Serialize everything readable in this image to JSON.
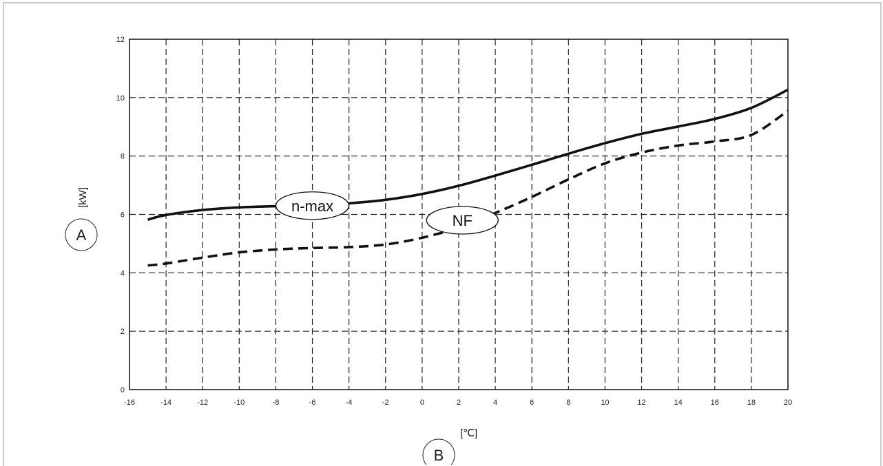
{
  "chart_data": {
    "type": "line",
    "title": "",
    "xlabel": "B",
    "ylabel": "A",
    "x_unit": "[℃]",
    "y_unit": "[kW]",
    "xlim": [
      -16,
      20
    ],
    "ylim": [
      0,
      12
    ],
    "xticks": [
      -16,
      -14,
      -12,
      -10,
      -8,
      -6,
      -4,
      -2,
      0,
      2,
      4,
      6,
      8,
      10,
      12,
      14,
      16,
      18,
      20
    ],
    "yticks": [
      0,
      2,
      4,
      6,
      8,
      10,
      12
    ],
    "grid": true,
    "series": [
      {
        "name": "n-max",
        "style": "solid",
        "x": [
          -15,
          -14,
          -12,
          -10,
          -8,
          -6,
          -4,
          -2,
          0,
          2,
          4,
          6,
          8,
          10,
          12,
          14,
          16,
          18,
          20
        ],
        "y": [
          5.82,
          5.98,
          6.15,
          6.24,
          6.28,
          6.3,
          6.38,
          6.5,
          6.7,
          6.98,
          7.33,
          7.7,
          8.08,
          8.44,
          8.76,
          9.01,
          9.27,
          9.65,
          10.27
        ]
      },
      {
        "name": "NF",
        "style": "dashed",
        "x": [
          -15,
          -14,
          -12,
          -10,
          -8,
          -6,
          -4,
          -2,
          0,
          2,
          4,
          6,
          8,
          10,
          12,
          14,
          16,
          18,
          20
        ],
        "y": [
          4.25,
          4.32,
          4.52,
          4.7,
          4.8,
          4.85,
          4.88,
          4.97,
          5.2,
          5.55,
          6.05,
          6.6,
          7.2,
          7.75,
          8.12,
          8.36,
          8.5,
          8.72,
          9.55
        ]
      }
    ]
  }
}
